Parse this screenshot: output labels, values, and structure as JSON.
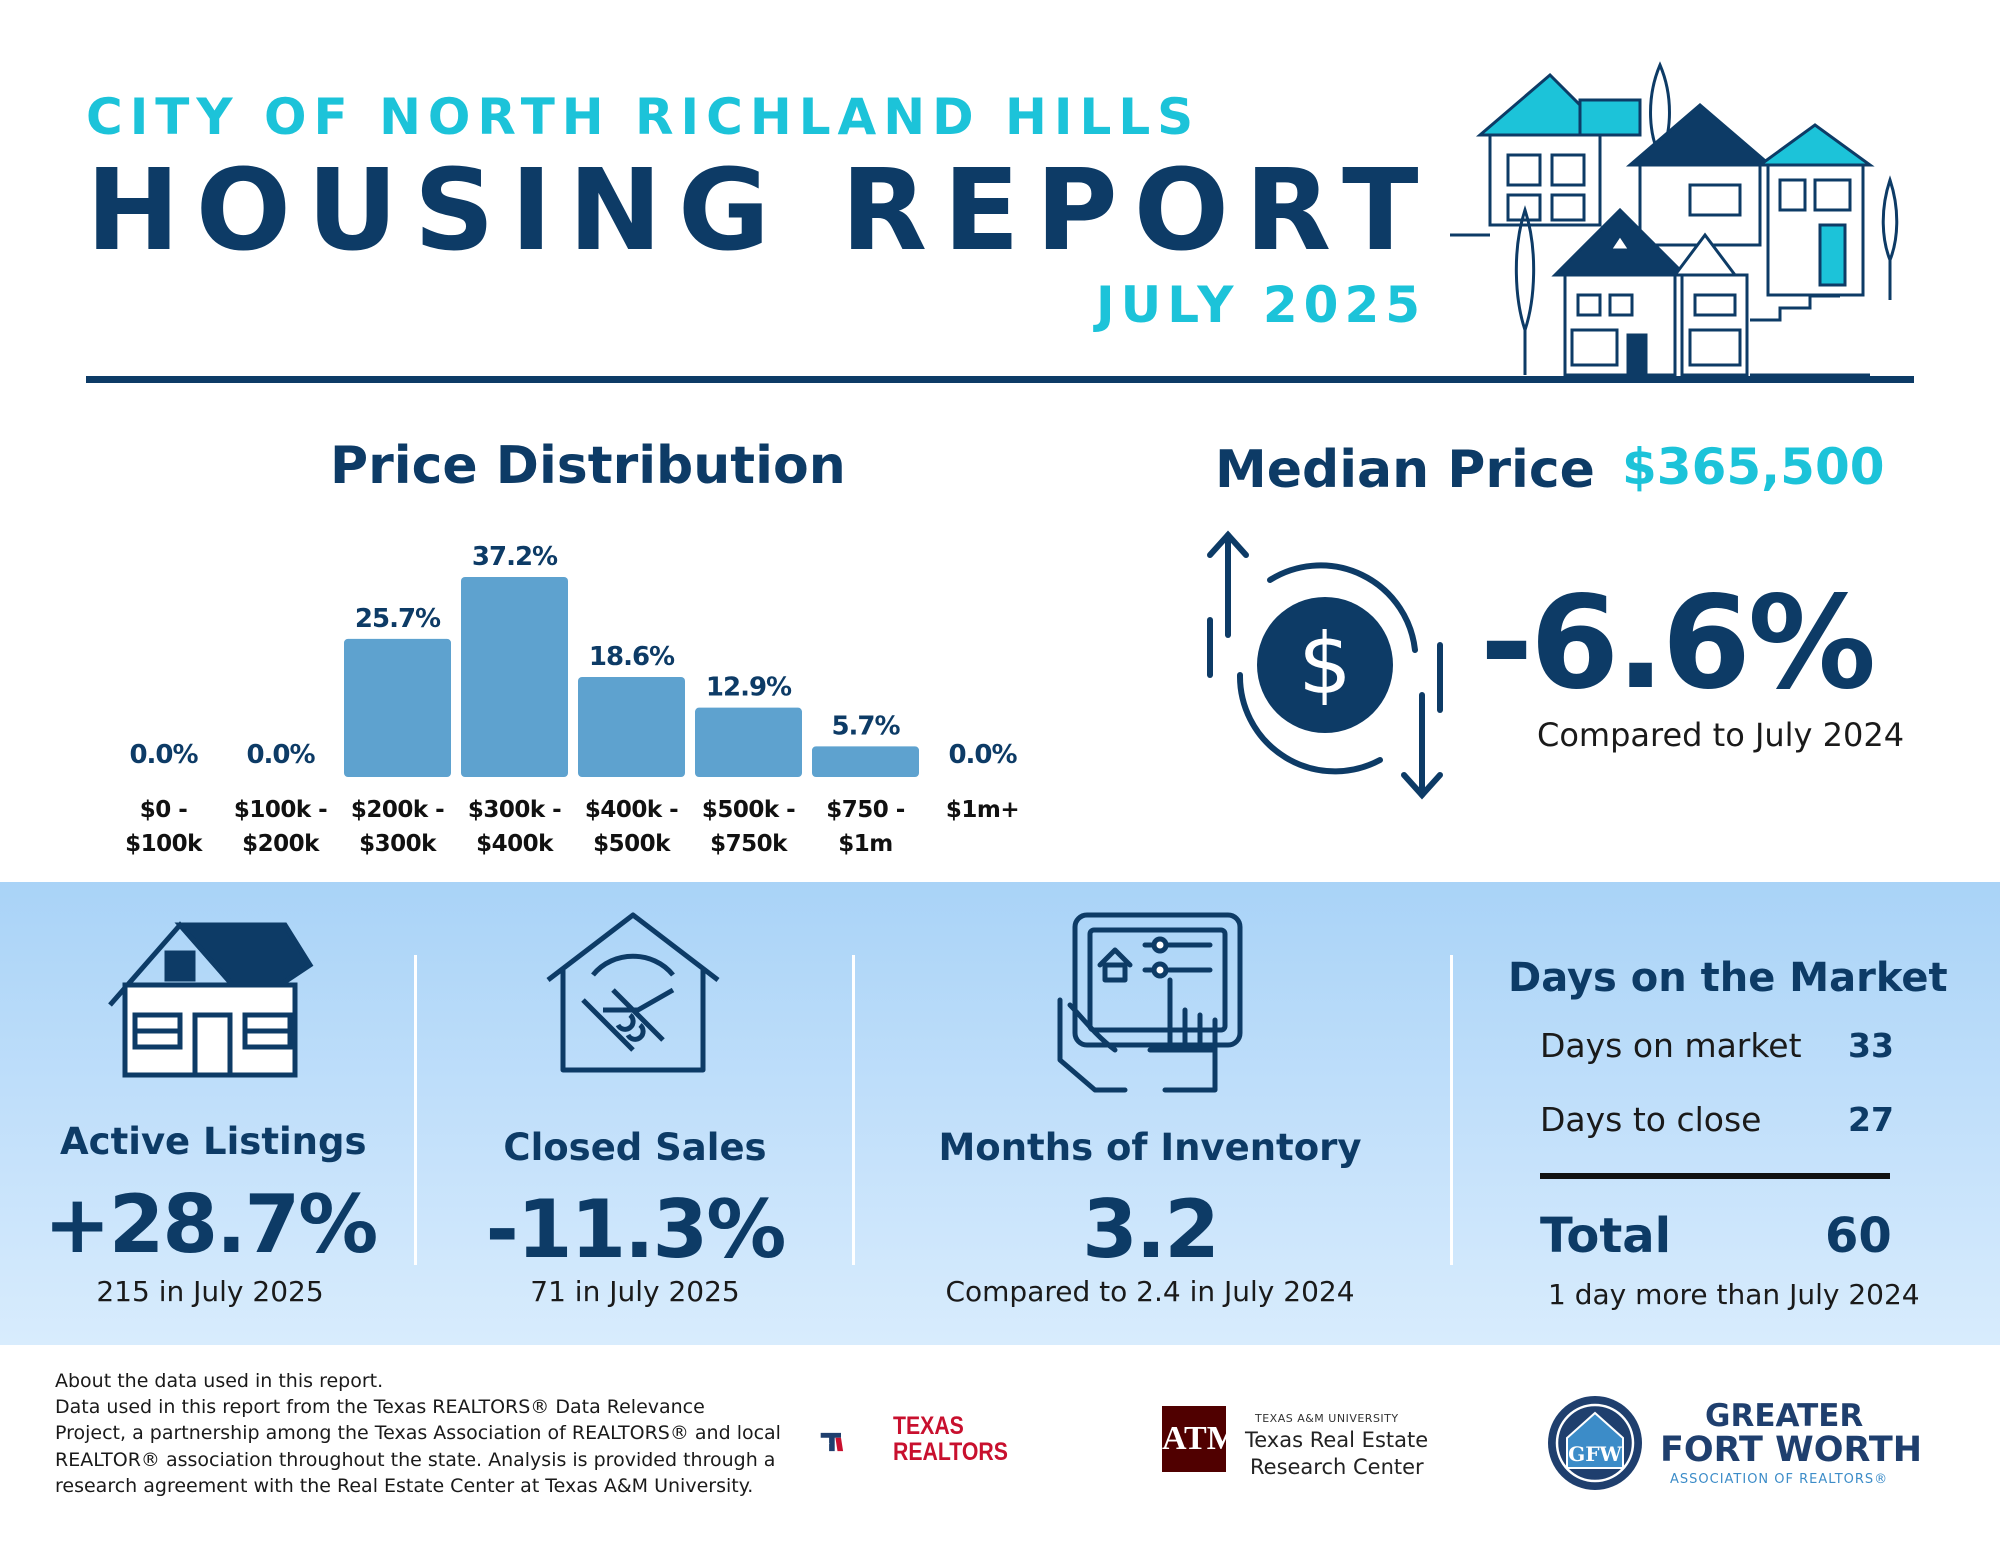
{
  "header": {
    "city": "CITY OF NORTH RICHLAND HILLS",
    "title": "HOUSING REPORT",
    "month": "JULY 2025"
  },
  "price_distribution": {
    "title": "Price Distribution"
  },
  "chart_data": {
    "type": "bar",
    "title": "Price Distribution",
    "categories": [
      [
        "$0 -",
        "$100k"
      ],
      [
        "$100k -",
        "$200k"
      ],
      [
        "$200k -",
        "$300k"
      ],
      [
        "$300k -",
        "$400k"
      ],
      [
        "$400k -",
        "$500k"
      ],
      [
        "$500k -",
        "$750k"
      ],
      [
        "$750 -",
        "$1m"
      ],
      [
        "$1m+"
      ]
    ],
    "values": [
      0.0,
      0.0,
      25.7,
      37.2,
      18.6,
      12.9,
      5.7,
      0.0
    ],
    "value_labels": [
      "0.0%",
      "0.0%",
      "25.7%",
      "37.2%",
      "18.6%",
      "12.9%",
      "5.7%",
      "0.0%"
    ],
    "ylim": [
      0,
      37.2
    ],
    "grid": false,
    "bar_color": "#5ea2cf"
  },
  "median_price": {
    "label": "Median Price",
    "value": "$365,500",
    "change": "-6.6%",
    "compare": "Compared to July 2024"
  },
  "kpis": {
    "active_listings": {
      "label": "Active Listings",
      "value": "+28.7%",
      "sub": "215 in July 2025"
    },
    "closed_sales": {
      "label": "Closed Sales",
      "value": "-11.3%",
      "sub": "71 in July 2025"
    },
    "months_inventory": {
      "label": "Months of Inventory",
      "value": "3.2",
      "sub": "Compared to 2.4 in July 2024"
    }
  },
  "days_on_market": {
    "title": "Days on the Market",
    "rows": [
      {
        "label": "Days on market",
        "value": "33"
      },
      {
        "label": "Days to close",
        "value": "27"
      }
    ],
    "total_label": "Total",
    "total_value": "60",
    "sub": "1 day more than July 2024"
  },
  "footer": {
    "about_lines": [
      "About the data used in this report.",
      "Data used in this report from the Texas REALTORS® Data Relevance",
      "Project, a partnership among the Texas Association of REALTORS® and local",
      "REALTOR® association throughout the state. Analysis is provided through a",
      "research agreement with the Real Estate Center at Texas A&M University."
    ],
    "texas_realtors": [
      "TEXAS",
      "REALTORS"
    ],
    "tamu": {
      "top": "TEXAS A&M UNIVERSITY",
      "line1": "Texas Real Estate",
      "line2": "Research Center"
    },
    "gfw": {
      "line1": "GREATER",
      "line2": "FORT WORTH",
      "line3": "ASSOCIATION OF REALTORS®"
    }
  },
  "colors": {
    "navy": "#0d3b66",
    "teal": "#1cc3d9",
    "bar": "#5ea2cf",
    "band": "#c6e2fb"
  },
  "icons": [
    "houses-illustration-icon",
    "dollar-cycle-icon",
    "house-icon",
    "handshake-house-icon",
    "tablet-hands-icon",
    "texas-realtors-logo-icon",
    "tamu-logo-icon",
    "gfw-logo-icon"
  ]
}
